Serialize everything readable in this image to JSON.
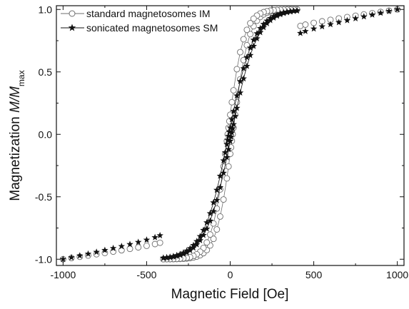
{
  "chart_data": {
    "type": "scatter",
    "xlabel": "Magnetic Field [Oe]",
    "ylabel": {
      "prefix": "Magnetization ",
      "var": "M/M",
      "sub": "max"
    },
    "xlim": [
      -1040,
      1040
    ],
    "ylim": [
      -1.05,
      1.03
    ],
    "xticks": [
      "-1000",
      "-500",
      "0",
      "500",
      "1000"
    ],
    "yticks": [
      "-1.0",
      "-0.5",
      "0.0",
      "0.5",
      "1.0"
    ],
    "grid": false,
    "legend_position": "top-left",
    "series": [
      {
        "name": "standard magnetosomes IM",
        "marker": "open-circle",
        "color": "#6e6e6e",
        "curve_params": {
          "Ms": 1.0,
          "Hc": 15,
          "a": 95,
          "Ho": 420,
          "Mo": 0.868
        },
        "x": [
          -400,
          -380,
          -360,
          -340,
          -320,
          -300,
          -280,
          -260,
          -240,
          -220,
          -200,
          -180,
          -160,
          -140,
          -120,
          -100,
          -80,
          -60,
          -40,
          -20,
          -10,
          0,
          5,
          10,
          15,
          20,
          30,
          40,
          60,
          80,
          100,
          120,
          140,
          160,
          180,
          200,
          220,
          240,
          260,
          280,
          300,
          320,
          340,
          360,
          380,
          400,
          400,
          380,
          360,
          340,
          320,
          300,
          280,
          260,
          240,
          220,
          200,
          180,
          160,
          140,
          120,
          100,
          80,
          60,
          40,
          20,
          10,
          0,
          -5,
          -10,
          -15,
          -20,
          -30,
          -40,
          -60,
          -80,
          -100,
          -120,
          -140,
          -160,
          -180,
          -200,
          -220,
          -240,
          -260,
          -280,
          -300,
          -320,
          -340,
          -360,
          -380,
          -400,
          -1000,
          -950,
          -900,
          -850,
          -800,
          -750,
          -700,
          -650,
          -600,
          -550,
          -500,
          -450,
          -420,
          420,
          450,
          500,
          550,
          600,
          650,
          700,
          750,
          800,
          850,
          900,
          950,
          1000
        ]
      },
      {
        "name": "sonicated magnetosomes SM",
        "marker": "filled-star",
        "color": "#111111",
        "curve_params": {
          "Ms": 1.0,
          "Hc": 8,
          "a": 150,
          "Ho": 420,
          "Mo": 0.81
        },
        "x": [
          -400,
          -380,
          -360,
          -340,
          -320,
          -300,
          -280,
          -260,
          -240,
          -220,
          -200,
          -180,
          -160,
          -140,
          -120,
          -100,
          -80,
          -60,
          -40,
          -20,
          -10,
          0,
          5,
          10,
          15,
          20,
          30,
          40,
          60,
          80,
          100,
          120,
          140,
          160,
          180,
          200,
          220,
          240,
          260,
          280,
          300,
          320,
          340,
          360,
          380,
          400,
          400,
          380,
          360,
          340,
          320,
          300,
          280,
          260,
          240,
          220,
          200,
          180,
          160,
          140,
          120,
          100,
          80,
          60,
          40,
          20,
          10,
          0,
          -5,
          -10,
          -15,
          -20,
          -30,
          -40,
          -60,
          -80,
          -100,
          -120,
          -140,
          -160,
          -180,
          -200,
          -220,
          -240,
          -260,
          -280,
          -300,
          -320,
          -340,
          -360,
          -380,
          -400,
          -1000,
          -950,
          -900,
          -850,
          -800,
          -750,
          -700,
          -650,
          -600,
          -550,
          -500,
          -450,
          -420,
          420,
          450,
          500,
          550,
          600,
          650,
          700,
          750,
          800,
          850,
          900,
          950,
          1000
        ]
      }
    ]
  }
}
